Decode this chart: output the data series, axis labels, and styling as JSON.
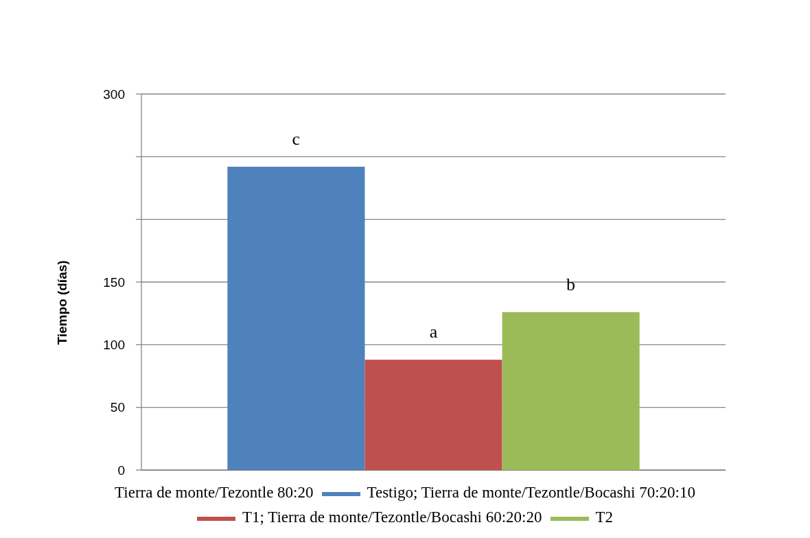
{
  "chart_data": {
    "type": "bar",
    "ylabel": "Tiempo (días)",
    "categories": [
      null
    ],
    "series": [
      {
        "name": "Testigo; Tierra de monte/Tezontle/Bocashi 70:20:10",
        "color": "#4f81bd",
        "values": [
          242
        ],
        "value_labels": [
          "c"
        ]
      },
      {
        "name": "T1; Tierra de monte/Tezontle/Bocashi 60:20:20",
        "color": "#c0504d",
        "values": [
          88
        ],
        "value_labels": [
          "a"
        ]
      },
      {
        "name": "T2",
        "color": "#9bbb59",
        "values": [
          126
        ],
        "value_labels": [
          "b"
        ]
      }
    ],
    "annotations": [
      "Tierra de monte/Tezontle 80:20"
    ],
    "ylim": [
      0,
      300
    ],
    "yticks": [
      0,
      50,
      100,
      150,
      {
        "value": 200,
        "label": null
      },
      {
        "value": 250,
        "label": null
      },
      300
    ],
    "grid": "y",
    "legend": "bottom"
  }
}
